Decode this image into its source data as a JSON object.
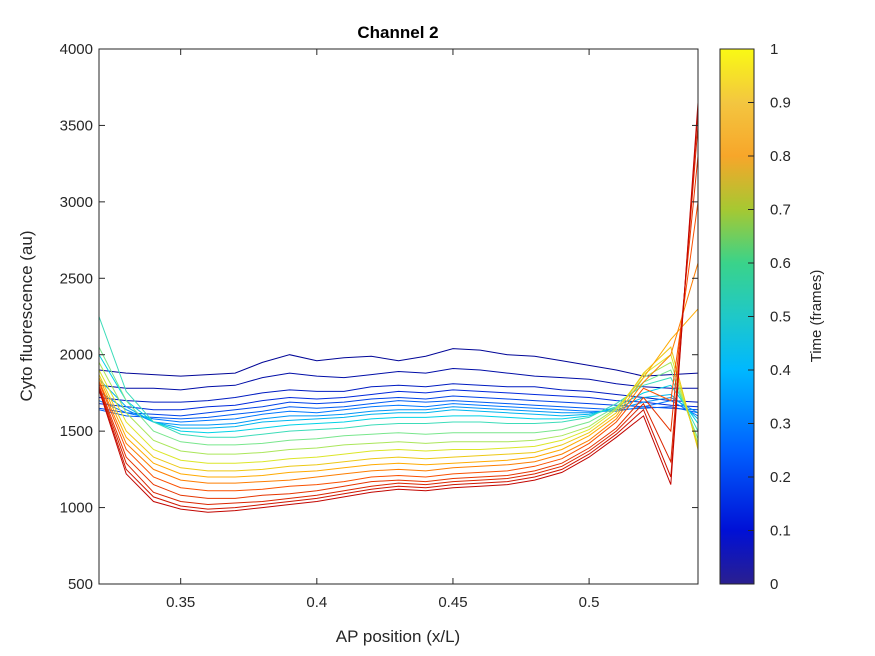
{
  "chart_data": {
    "type": "line",
    "title": "Channel 2",
    "xlabel": "AP position (x/L)",
    "ylabel": "Cyto fluorescence (au)",
    "xlim": [
      0.32,
      0.54
    ],
    "ylim": [
      500,
      4000
    ],
    "xticks": [
      "0.35",
      "0.4",
      "0.45",
      "0.5"
    ],
    "xtick_values": [
      0.35,
      0.4,
      0.45,
      0.5
    ],
    "yticks": [
      "500",
      "1000",
      "1500",
      "2000",
      "2500",
      "3000",
      "3500",
      "4000"
    ],
    "ytick_values": [
      500,
      1000,
      1500,
      2000,
      2500,
      3000,
      3500,
      4000
    ],
    "grid": false,
    "colormap": "jet",
    "colorbar": {
      "label": "Time (frames)",
      "range": [
        0,
        1
      ],
      "ticks": [
        "0",
        "0.1",
        "0.2",
        "0.3",
        "0.4",
        "0.5",
        "0.6",
        "0.7",
        "0.8",
        "0.9",
        "1"
      ],
      "tick_values": [
        0,
        0.1,
        0.2,
        0.3,
        0.4,
        0.5,
        0.6,
        0.7,
        0.8,
        0.9,
        1
      ]
    },
    "x": [
      0.32,
      0.33,
      0.34,
      0.35,
      0.36,
      0.37,
      0.38,
      0.39,
      0.4,
      0.41,
      0.42,
      0.43,
      0.44,
      0.45,
      0.46,
      0.47,
      0.48,
      0.49,
      0.5,
      0.51,
      0.52,
      0.53,
      0.54
    ],
    "series": [
      {
        "time": 0.02,
        "values": [
          1900,
          1880,
          1870,
          1860,
          1870,
          1880,
          1950,
          2000,
          1960,
          1980,
          1990,
          1960,
          1990,
          2040,
          2030,
          2000,
          1990,
          1960,
          1930,
          1900,
          1860,
          1870,
          1880
        ]
      },
      {
        "time": 0.05,
        "values": [
          1800,
          1780,
          1780,
          1770,
          1790,
          1800,
          1850,
          1880,
          1860,
          1850,
          1870,
          1890,
          1880,
          1910,
          1900,
          1880,
          1860,
          1850,
          1840,
          1810,
          1790,
          1780,
          1780
        ]
      },
      {
        "time": 0.1,
        "values": [
          1720,
          1700,
          1690,
          1690,
          1700,
          1720,
          1750,
          1770,
          1760,
          1760,
          1790,
          1800,
          1790,
          1810,
          1800,
          1790,
          1790,
          1770,
          1760,
          1740,
          1720,
          1700,
          1690
        ]
      },
      {
        "time": 0.15,
        "values": [
          1680,
          1660,
          1640,
          1640,
          1660,
          1670,
          1700,
          1720,
          1710,
          1720,
          1740,
          1760,
          1750,
          1770,
          1760,
          1750,
          1740,
          1730,
          1720,
          1700,
          1690,
          1670,
          1660
        ]
      },
      {
        "time": 0.2,
        "values": [
          1650,
          1620,
          1610,
          1600,
          1620,
          1640,
          1660,
          1690,
          1680,
          1690,
          1710,
          1720,
          1710,
          1730,
          1720,
          1710,
          1700,
          1690,
          1680,
          1670,
          1660,
          1650,
          1640
        ]
      },
      {
        "time": 0.25,
        "values": [
          1640,
          1600,
          1590,
          1580,
          1590,
          1610,
          1630,
          1660,
          1650,
          1660,
          1680,
          1700,
          1690,
          1700,
          1690,
          1680,
          1670,
          1660,
          1650,
          1640,
          1650,
          1660,
          1620
        ]
      },
      {
        "time": 0.3,
        "values": [
          1700,
          1620,
          1580,
          1560,
          1570,
          1580,
          1610,
          1630,
          1620,
          1640,
          1660,
          1670,
          1660,
          1680,
          1670,
          1660,
          1650,
          1640,
          1630,
          1630,
          1660,
          1700,
          1600
        ]
      },
      {
        "time": 0.35,
        "values": [
          1760,
          1640,
          1560,
          1540,
          1540,
          1550,
          1580,
          1600,
          1600,
          1610,
          1630,
          1640,
          1640,
          1660,
          1650,
          1640,
          1630,
          1620,
          1620,
          1640,
          1690,
          1720,
          1620
        ]
      },
      {
        "time": 0.4,
        "values": [
          1840,
          1660,
          1560,
          1520,
          1520,
          1530,
          1560,
          1570,
          1580,
          1590,
          1610,
          1620,
          1620,
          1640,
          1630,
          1620,
          1610,
          1600,
          1610,
          1650,
          1720,
          1740,
          1580
        ]
      },
      {
        "time": 0.45,
        "values": [
          2000,
          1700,
          1560,
          1500,
          1490,
          1500,
          1520,
          1540,
          1550,
          1560,
          1580,
          1590,
          1590,
          1600,
          1600,
          1590,
          1580,
          1580,
          1600,
          1660,
          1750,
          1800,
          1550
        ]
      },
      {
        "time": 0.5,
        "values": [
          2250,
          1760,
          1560,
          1480,
          1460,
          1460,
          1480,
          1500,
          1510,
          1520,
          1540,
          1550,
          1550,
          1560,
          1560,
          1550,
          1550,
          1560,
          1590,
          1680,
          1800,
          1850,
          1500
        ]
      },
      {
        "time": 0.55,
        "values": [
          2050,
          1700,
          1500,
          1430,
          1410,
          1410,
          1420,
          1440,
          1450,
          1470,
          1480,
          1490,
          1480,
          1490,
          1490,
          1490,
          1490,
          1510,
          1560,
          1660,
          1820,
          1900,
          1450
        ]
      },
      {
        "time": 0.6,
        "values": [
          1950,
          1620,
          1440,
          1370,
          1350,
          1350,
          1360,
          1380,
          1390,
          1410,
          1420,
          1430,
          1420,
          1430,
          1430,
          1430,
          1440,
          1470,
          1530,
          1650,
          1850,
          1950,
          1420
        ]
      },
      {
        "time": 0.65,
        "values": [
          1900,
          1560,
          1380,
          1310,
          1290,
          1290,
          1300,
          1320,
          1330,
          1350,
          1370,
          1380,
          1370,
          1380,
          1380,
          1390,
          1400,
          1440,
          1510,
          1640,
          1870,
          2000,
          1400
        ]
      },
      {
        "time": 0.7,
        "values": [
          1870,
          1500,
          1330,
          1260,
          1240,
          1240,
          1250,
          1270,
          1280,
          1300,
          1320,
          1330,
          1320,
          1330,
          1340,
          1350,
          1360,
          1410,
          1490,
          1620,
          1880,
          2050,
          1380
        ]
      },
      {
        "time": 0.75,
        "values": [
          1850,
          1460,
          1290,
          1220,
          1200,
          1200,
          1210,
          1230,
          1240,
          1260,
          1280,
          1290,
          1280,
          1290,
          1300,
          1310,
          1330,
          1380,
          1470,
          1600,
          1850,
          2100,
          2300
        ]
      },
      {
        "time": 0.8,
        "values": [
          1830,
          1420,
          1250,
          1180,
          1160,
          1160,
          1170,
          1180,
          1200,
          1220,
          1240,
          1250,
          1240,
          1260,
          1270,
          1280,
          1300,
          1350,
          1440,
          1580,
          1820,
          2000,
          2600
        ]
      },
      {
        "time": 0.85,
        "values": [
          1820,
          1380,
          1200,
          1130,
          1110,
          1110,
          1120,
          1140,
          1150,
          1170,
          1200,
          1210,
          1200,
          1220,
          1230,
          1240,
          1270,
          1320,
          1420,
          1560,
          1780,
          1700,
          3000
        ]
      },
      {
        "time": 0.9,
        "values": [
          1800,
          1330,
          1150,
          1080,
          1060,
          1060,
          1080,
          1090,
          1110,
          1140,
          1170,
          1180,
          1170,
          1190,
          1200,
          1210,
          1240,
          1290,
          1390,
          1520,
          1720,
          1500,
          3300
        ]
      },
      {
        "time": 0.93,
        "values": [
          1790,
          1290,
          1100,
          1040,
          1020,
          1030,
          1040,
          1060,
          1080,
          1110,
          1140,
          1160,
          1150,
          1170,
          1180,
          1190,
          1220,
          1270,
          1370,
          1500,
          1680,
          1300,
          3500
        ]
      },
      {
        "time": 0.96,
        "values": [
          1780,
          1250,
          1070,
          1010,
          990,
          1000,
          1020,
          1040,
          1060,
          1090,
          1120,
          1140,
          1130,
          1150,
          1160,
          1170,
          1200,
          1250,
          1350,
          1480,
          1640,
          1200,
          3600
        ]
      },
      {
        "time": 0.99,
        "values": [
          1770,
          1220,
          1040,
          990,
          970,
          980,
          1000,
          1020,
          1040,
          1070,
          1100,
          1120,
          1110,
          1130,
          1140,
          1150,
          1180,
          1230,
          1330,
          1460,
          1600,
          1150,
          3650
        ]
      }
    ]
  }
}
